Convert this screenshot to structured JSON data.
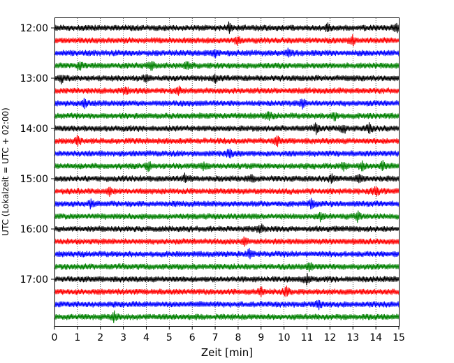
{
  "chart_data": {
    "type": "line",
    "title": "",
    "xlabel": "Zeit  [min]",
    "ylabel": "UTC (Lokalzeit = UTC + 02:00)",
    "xlim": [
      0,
      15
    ],
    "x_ticks": [
      "0",
      "1",
      "2",
      "3",
      "4",
      "5",
      "6",
      "7",
      "8",
      "9",
      "10",
      "11",
      "12",
      "13",
      "14",
      "15"
    ],
    "y_ticks": [
      "12:00",
      "13:00",
      "14:00",
      "15:00",
      "16:00",
      "17:00"
    ],
    "grid": "vertical dotted",
    "trace_interval_minutes": 15,
    "start_time": "12:00",
    "trace_colors": [
      "#000000",
      "#ff0000",
      "#0000ff",
      "#008000"
    ],
    "series": [
      {
        "start": "12:00",
        "color": "#000000",
        "events_min": [
          7.6,
          11.9,
          14.9
        ]
      },
      {
        "start": "12:15",
        "color": "#ff0000",
        "events_min": [
          8.0,
          13.0
        ]
      },
      {
        "start": "12:30",
        "color": "#0000ff",
        "events_min": [
          7.0,
          10.2
        ]
      },
      {
        "start": "12:45",
        "color": "#008000",
        "events_min": [
          1.1,
          4.2,
          5.8
        ]
      },
      {
        "start": "13:00",
        "color": "#000000",
        "events_min": [
          0.3,
          4.0,
          7.0
        ]
      },
      {
        "start": "13:15",
        "color": "#ff0000",
        "events_min": [
          3.1,
          5.4
        ]
      },
      {
        "start": "13:30",
        "color": "#0000ff",
        "events_min": [
          1.3,
          10.8
        ]
      },
      {
        "start": "13:45",
        "color": "#008000",
        "events_min": [
          9.3,
          12.2
        ]
      },
      {
        "start": "14:00",
        "color": "#000000",
        "events_min": [
          11.4,
          12.6,
          13.7
        ]
      },
      {
        "start": "14:15",
        "color": "#ff0000",
        "events_min": [
          1.0,
          9.7
        ]
      },
      {
        "start": "14:30",
        "color": "#0000ff",
        "events_min": [
          7.6
        ]
      },
      {
        "start": "14:45",
        "color": "#008000",
        "events_min": [
          4.1,
          6.5,
          12.6,
          13.4,
          14.3
        ]
      },
      {
        "start": "15:00",
        "color": "#000000",
        "events_min": [
          5.7,
          8.6,
          12.1,
          13.3
        ]
      },
      {
        "start": "15:15",
        "color": "#ff0000",
        "events_min": [
          2.4,
          14.0
        ]
      },
      {
        "start": "15:30",
        "color": "#0000ff",
        "events_min": [
          1.6,
          11.2
        ]
      },
      {
        "start": "15:45",
        "color": "#008000",
        "events_min": [
          11.6,
          13.2
        ]
      },
      {
        "start": "16:00",
        "color": "#000000",
        "events_min": [
          9.0
        ]
      },
      {
        "start": "16:15",
        "color": "#ff0000",
        "events_min": [
          8.3
        ]
      },
      {
        "start": "16:30",
        "color": "#0000ff",
        "events_min": [
          8.5
        ]
      },
      {
        "start": "16:45",
        "color": "#008000",
        "events_min": [
          11.1
        ]
      },
      {
        "start": "17:00",
        "color": "#000000",
        "events_min": [
          11.0
        ]
      },
      {
        "start": "17:15",
        "color": "#ff0000",
        "events_min": [
          9.0,
          10.1
        ]
      },
      {
        "start": "17:30",
        "color": "#0000ff",
        "events_min": [
          11.5
        ]
      },
      {
        "start": "17:45",
        "color": "#008000",
        "events_min": [
          2.6
        ]
      }
    ]
  }
}
